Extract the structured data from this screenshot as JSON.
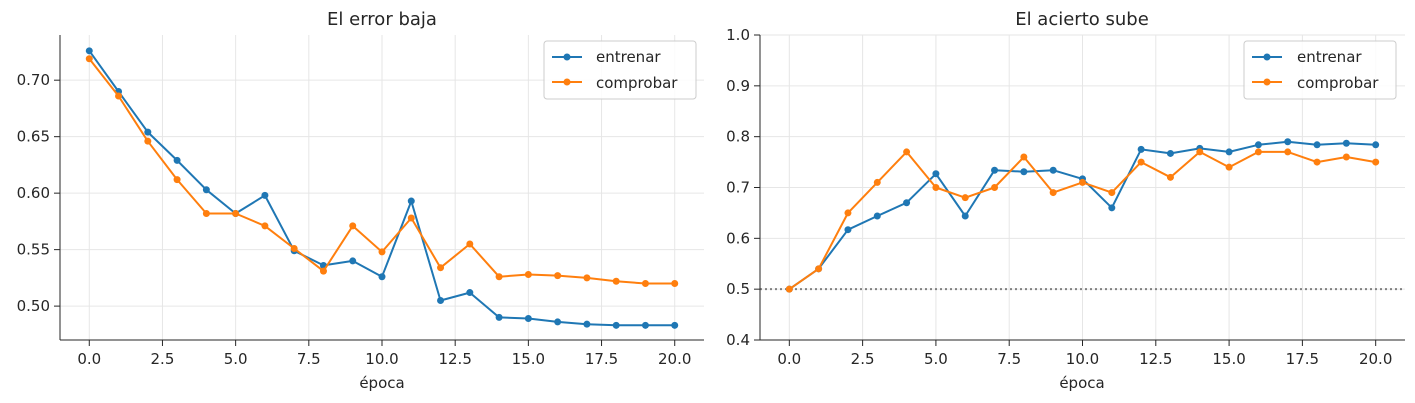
{
  "colors": {
    "train": "#1f77b4",
    "test": "#ff7f0e",
    "grid": "#e6e6e6",
    "axis": "#262626",
    "baseline": "#808080"
  },
  "chart_data": [
    {
      "type": "line",
      "title": "El error baja",
      "xlabel": "época",
      "ylabel": "",
      "xlim": [
        -1,
        21
      ],
      "ylim": [
        0.47,
        0.74
      ],
      "xticks": [
        0.0,
        2.5,
        5.0,
        7.5,
        10.0,
        12.5,
        15.0,
        17.5,
        20.0
      ],
      "xtick_labels": [
        "0.0",
        "2.5",
        "5.0",
        "7.5",
        "10.0",
        "12.5",
        "15.0",
        "17.5",
        "20.0"
      ],
      "yticks": [
        0.5,
        0.55,
        0.6,
        0.65,
        0.7
      ],
      "ytick_labels": [
        "0.50",
        "0.55",
        "0.60",
        "0.65",
        "0.70"
      ],
      "grid": true,
      "legend_position": "top-right",
      "x": [
        0,
        1,
        2,
        3,
        4,
        5,
        6,
        7,
        8,
        9,
        10,
        11,
        12,
        13,
        14,
        15,
        16,
        17,
        18,
        19,
        20
      ],
      "series": [
        {
          "name": "entrenar",
          "color": "#1f77b4",
          "values": [
            0.726,
            0.69,
            0.654,
            0.629,
            0.603,
            0.582,
            0.598,
            0.549,
            0.536,
            0.54,
            0.526,
            0.593,
            0.505,
            0.512,
            0.49,
            0.489,
            0.486,
            0.484,
            0.483,
            0.483,
            0.483
          ]
        },
        {
          "name": "comprobar",
          "color": "#ff7f0e",
          "values": [
            0.719,
            0.686,
            0.646,
            0.612,
            0.582,
            0.582,
            0.571,
            0.551,
            0.531,
            0.571,
            0.548,
            0.578,
            0.534,
            0.555,
            0.526,
            0.528,
            0.527,
            0.525,
            0.522,
            0.52,
            0.52
          ]
        }
      ]
    },
    {
      "type": "line",
      "title": "El acierto sube",
      "xlabel": "época",
      "ylabel": "",
      "xlim": [
        -1,
        21
      ],
      "ylim": [
        0.4,
        1.0
      ],
      "xticks": [
        0.0,
        2.5,
        5.0,
        7.5,
        10.0,
        12.5,
        15.0,
        17.5,
        20.0
      ],
      "xtick_labels": [
        "0.0",
        "2.5",
        "5.0",
        "7.5",
        "10.0",
        "12.5",
        "15.0",
        "17.5",
        "20.0"
      ],
      "yticks": [
        0.4,
        0.5,
        0.6,
        0.7,
        0.8,
        0.9,
        1.0
      ],
      "ytick_labels": [
        "0.4",
        "0.5",
        "0.6",
        "0.7",
        "0.8",
        "0.9",
        "1.0"
      ],
      "grid": true,
      "legend_position": "top-right",
      "reference_line_y": 0.5,
      "x": [
        0,
        1,
        2,
        3,
        4,
        5,
        6,
        7,
        8,
        9,
        10,
        11,
        12,
        13,
        14,
        15,
        16,
        17,
        18,
        19,
        20
      ],
      "series": [
        {
          "name": "entrenar",
          "color": "#1f77b4",
          "values": [
            0.5,
            0.54,
            0.617,
            0.644,
            0.67,
            0.727,
            0.644,
            0.734,
            0.731,
            0.734,
            0.717,
            0.66,
            0.775,
            0.767,
            0.777,
            0.77,
            0.784,
            0.79,
            0.784,
            0.787,
            0.784
          ]
        },
        {
          "name": "comprobar",
          "color": "#ff7f0e",
          "values": [
            0.5,
            0.54,
            0.65,
            0.71,
            0.77,
            0.7,
            0.68,
            0.7,
            0.76,
            0.69,
            0.71,
            0.69,
            0.75,
            0.72,
            0.77,
            0.74,
            0.77,
            0.77,
            0.75,
            0.76,
            0.75
          ]
        }
      ]
    }
  ]
}
